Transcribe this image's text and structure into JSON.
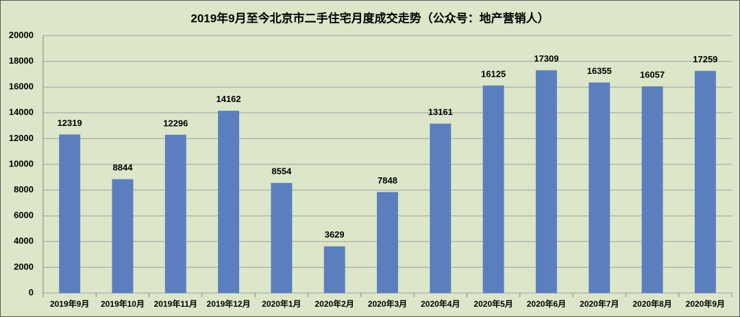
{
  "chart_data": {
    "type": "bar",
    "title": "2019年9月至今北京市二手住宅月度成交走势（公众号：地产营销人）",
    "categories": [
      "2019年9月",
      "2019年10月",
      "2019年11月",
      "2019年12月",
      "2020年1月",
      "2020年2月",
      "2020年3月",
      "2020年4月",
      "2020年5月",
      "2020年6月",
      "2020年7月",
      "2020年8月",
      "2020年9月"
    ],
    "values": [
      12319,
      8844,
      12296,
      14162,
      8554,
      3629,
      7848,
      13161,
      16125,
      17309,
      16355,
      16057,
      17259
    ],
    "color": "#5b7fbe",
    "ylim": [
      0,
      20000
    ],
    "yticks": [
      0,
      2000,
      4000,
      6000,
      8000,
      10000,
      12000,
      14000,
      16000,
      18000,
      20000
    ],
    "grid": true
  }
}
